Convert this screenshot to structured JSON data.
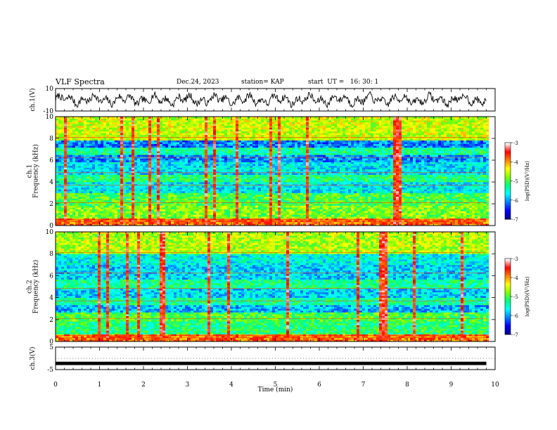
{
  "header": {
    "title": "VLF Spectra",
    "date": "Dec.24, 2023",
    "station": "station= KAP",
    "start": "start  UT =   16: 30: 1"
  },
  "chart_data": [
    {
      "type": "line",
      "panel": "ch1-waveform",
      "ylabel": "ch.1(V)",
      "ylim": [
        -10,
        10
      ],
      "yticks": [
        "10",
        "-10"
      ],
      "x_range": [
        0,
        10
      ],
      "data_end_min": 9.8,
      "series_color": "#000000"
    },
    {
      "type": "heatmap",
      "panel": "ch1-spectrogram",
      "ylabel": "ch.1\nFrequency (kHz)",
      "ylim": [
        0,
        10
      ],
      "yticks": [
        "0",
        "2",
        "4",
        "6",
        "8",
        "10"
      ],
      "x_range": [
        0,
        10
      ],
      "data_end_min": 9.8,
      "colorbar": {
        "label": "log(PSD)(V²/Hz)",
        "range": [
          -7,
          -3
        ],
        "ticks": [
          "-3",
          "-4",
          "-5",
          "-6",
          "-7"
        ]
      },
      "colormap": [
        "#000090",
        "#0000ff",
        "#0080ff",
        "#00ffff",
        "#00ff80",
        "#80ff00",
        "#ffff00",
        "#ff8000",
        "#ff0000",
        "#ffffff"
      ]
    },
    {
      "type": "heatmap",
      "panel": "ch2-spectrogram",
      "ylabel": "ch.2\nFrequency (kHz)",
      "ylim": [
        0,
        10
      ],
      "yticks": [
        "0",
        "2",
        "4",
        "6",
        "8",
        "10"
      ],
      "x_range": [
        0,
        10
      ],
      "data_end_min": 9.8,
      "colorbar": {
        "label": "log(PSD)(V²/Hz)",
        "range": [
          -7,
          -3
        ],
        "ticks": [
          "-3",
          "-4",
          "-5",
          "-6",
          "-7"
        ]
      },
      "colormap": [
        "#000090",
        "#0000ff",
        "#0080ff",
        "#00ffff",
        "#00ff80",
        "#80ff00",
        "#ffff00",
        "#ff8000",
        "#ff0000",
        "#ffffff"
      ]
    },
    {
      "type": "line",
      "panel": "ch3-waveform",
      "ylabel": "ch.3(V)",
      "ylim": [
        -5,
        5
      ],
      "yticks": [
        "5",
        "-5"
      ],
      "x_range": [
        0,
        10
      ],
      "data_end_min": 9.8,
      "level_approx": [
        -3,
        -1.5
      ],
      "xlabel": "Time  (min)",
      "xticks": [
        "0",
        "1",
        "2",
        "3",
        "4",
        "5",
        "6",
        "7",
        "8",
        "9",
        "10"
      ]
    }
  ]
}
